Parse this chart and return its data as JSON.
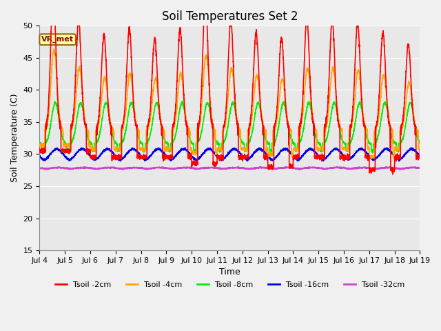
{
  "title": "Soil Temperatures Set 2",
  "xlabel": "Time",
  "ylabel": "Soil Temperature (C)",
  "ylim": [
    15,
    50
  ],
  "ytick_values": [
    15,
    20,
    25,
    30,
    35,
    40,
    45,
    50
  ],
  "xtick_labels": [
    "Jul 4",
    "Jul 5",
    "Jul 6",
    "Jul 7",
    "Jul 8",
    "Jul 9",
    "Jul 10",
    "Jul 11",
    "Jul 12",
    "Jul 13",
    "Jul 14",
    "Jul 15",
    "Jul 16",
    "Jul 17",
    "Jul 18",
    "Jul 19"
  ],
  "legend_entries": [
    "Tsoil -2cm",
    "Tsoil -4cm",
    "Tsoil -8cm",
    "Tsoil -16cm",
    "Tsoil -32cm"
  ],
  "line_colors": [
    "#FF0000",
    "#FFA500",
    "#00EE00",
    "#0000EE",
    "#CC44CC"
  ],
  "annotation_text": "VR_met",
  "background_color": "#E8E8E8",
  "grid_color": "#FFFFFF",
  "fig_color": "#F0F0F0",
  "title_fontsize": 12,
  "axis_fontsize": 9,
  "tick_fontsize": 8,
  "legend_fontsize": 8,
  "params": {
    "mean_2cm": 34.0,
    "amp_2cm": 14.5,
    "phase_2cm": 0.54,
    "mean_4cm": 33.5,
    "amp_4cm": 10.0,
    "phase_4cm": 0.57,
    "mean_8cm": 31.5,
    "amp_8cm": 6.5,
    "phase_8cm": 0.62,
    "mean_16cm": 28.8,
    "amp_16cm": 2.0,
    "phase_16cm": 0.68,
    "mean_32cm": 27.5,
    "amp_32cm": 0.4,
    "phase_32cm": 0.75
  }
}
